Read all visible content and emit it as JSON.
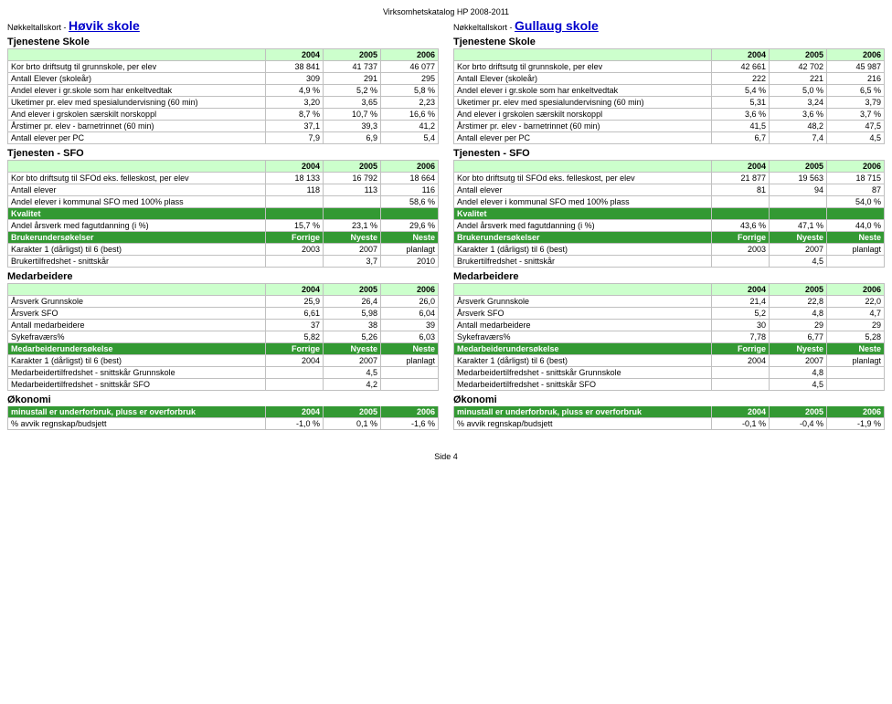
{
  "catalog_title": "Virksomhetskatalog HP 2008-2011",
  "footer": "Side 4",
  "columns": [
    {
      "key_prefix": "Nøkkeltallskort - ",
      "school": "Høvik skole",
      "sections": [
        {
          "title": "Tjenestene Skole",
          "headers": [
            "",
            "2004",
            "2005",
            "2006"
          ],
          "rows": [
            [
              "Kor brto driftsutg til grunnskole, per elev",
              "38 841",
              "41 737",
              "46 077"
            ],
            [
              "Antall Elever (skoleår)",
              "309",
              "291",
              "295"
            ],
            [
              "Andel elever i gr.skole som har enkeltvedtak",
              "4,9 %",
              "5,2 %",
              "5,8 %"
            ],
            [
              "Uketimer pr. elev med spesialundervisning (60 min)",
              "3,20",
              "3,65",
              "2,23"
            ],
            [
              "And elever i grskolen særskilt norskoppl",
              "8,7 %",
              "10,7 %",
              "16,6 %"
            ],
            [
              "Årstimer pr. elev - barnetrinnet (60 min)",
              "37,1",
              "39,3",
              "41,2"
            ],
            [
              "Antall elever per PC",
              "7,9",
              "6,9",
              "5,4"
            ]
          ]
        },
        {
          "title": "Tjenesten - SFO",
          "headers": [
            "",
            "2004",
            "2005",
            "2006"
          ],
          "rows": [
            [
              "Kor bto driftsutg til SFOd eks. felleskost, per elev",
              "18 133",
              "16 792",
              "18 664"
            ],
            [
              "Antall elever",
              "118",
              "113",
              "116"
            ],
            [
              "Andel elever i kommunal SFO med 100% plass",
              "",
              "",
              "58,6 %"
            ]
          ],
          "dark_row": [
            "Kvalitet",
            "",
            "",
            ""
          ],
          "rows2": [
            [
              "Andel årsverk med fagutdanning (i %)",
              "15,7 %",
              "23,1 %",
              "29,6 %"
            ]
          ],
          "dark_row2": [
            "Brukerundersøkelser",
            "Forrige",
            "Nyeste",
            "Neste"
          ],
          "rows3": [
            [
              "Karakter 1 (dårligst) til 6 (best)",
              "2003",
              "2007",
              "planlagt"
            ],
            [
              "Brukertilfredshet - snittskår",
              "",
              "3,7",
              "2010"
            ]
          ]
        },
        {
          "title": "Medarbeidere",
          "headers": [
            "",
            "2004",
            "2005",
            "2006"
          ],
          "rows": [
            [
              "Årsverk Grunnskole",
              "25,9",
              "26,4",
              "26,0"
            ],
            [
              "Årsverk SFO",
              "6,61",
              "5,98",
              "6,04"
            ],
            [
              "Antall medarbeidere",
              "37",
              "38",
              "39"
            ],
            [
              "Sykefraværs%",
              "5,82",
              "5,26",
              "6,03"
            ]
          ],
          "dark_row": [
            "Medarbeiderundersøkelse",
            "Forrige",
            "Nyeste",
            "Neste"
          ],
          "rows2": [
            [
              "Karakter 1 (dårligst) til 6 (best)",
              "2004",
              "2007",
              "planlagt"
            ],
            [
              "Medarbeidertilfredshet - snittskår Grunnskole",
              "",
              "4,5",
              ""
            ],
            [
              "Medarbeidertilfredshet - snittskår SFO",
              "",
              "4,2",
              ""
            ]
          ]
        },
        {
          "title": "Økonomi",
          "dark_header": [
            "minustall er underforbruk, pluss er overforbruk",
            "2004",
            "2005",
            "2006"
          ],
          "rows": [
            [
              "% avvik regnskap/budsjett",
              "-1,0 %",
              "0,1 %",
              "-1,6 %"
            ]
          ]
        }
      ]
    },
    {
      "key_prefix": "Nøkkeltallskort - ",
      "school": "Gullaug skole",
      "sections": [
        {
          "title": "Tjenestene Skole",
          "headers": [
            "",
            "2004",
            "2005",
            "2006"
          ],
          "rows": [
            [
              "Kor brto driftsutg til grunnskole, per elev",
              "42 661",
              "42 702",
              "45 987"
            ],
            [
              "Antall Elever (skoleår)",
              "222",
              "221",
              "216"
            ],
            [
              "Andel elever i gr.skole som har enkeltvedtak",
              "5,4 %",
              "5,0 %",
              "6,5 %"
            ],
            [
              "Uketimer pr. elev med spesialundervisning (60 min)",
              "5,31",
              "3,24",
              "3,79"
            ],
            [
              "And elever i grskolen særskilt norskoppl",
              "3,6 %",
              "3,6 %",
              "3,7 %"
            ],
            [
              "Årstimer pr. elev - barnetrinnet (60 min)",
              "41,5",
              "48,2",
              "47,5"
            ],
            [
              "Antall elever per PC",
              "6,7",
              "7,4",
              "4,5"
            ]
          ]
        },
        {
          "title": "Tjenesten - SFO",
          "headers": [
            "",
            "2004",
            "2005",
            "2006"
          ],
          "rows": [
            [
              "Kor bto driftsutg til SFOd eks. felleskost, per elev",
              "21 877",
              "19 563",
              "18 715"
            ],
            [
              "Antall elever",
              "81",
              "94",
              "87"
            ],
            [
              "Andel elever i kommunal SFO med 100% plass",
              "",
              "",
              "54,0 %"
            ]
          ],
          "dark_row": [
            "Kvalitet",
            "",
            "",
            ""
          ],
          "rows2": [
            [
              "Andel årsverk med fagutdanning (i %)",
              "43,6 %",
              "47,1 %",
              "44,0 %"
            ]
          ],
          "dark_row2": [
            "Brukerundersøkelser",
            "Forrige",
            "Nyeste",
            "Neste"
          ],
          "rows3": [
            [
              "Karakter 1 (dårligst) til 6 (best)",
              "2003",
              "2007",
              "planlagt"
            ],
            [
              "Brukertilfredshet - snittskår",
              "",
              "4,5",
              ""
            ]
          ]
        },
        {
          "title": "Medarbeidere",
          "headers": [
            "",
            "2004",
            "2005",
            "2006"
          ],
          "rows": [
            [
              "Årsverk Grunnskole",
              "21,4",
              "22,8",
              "22,0"
            ],
            [
              "Årsverk SFO",
              "5,2",
              "4,8",
              "4,7"
            ],
            [
              "Antall medarbeidere",
              "30",
              "29",
              "29"
            ],
            [
              "Sykefraværs%",
              "7,78",
              "6,77",
              "5,28"
            ]
          ],
          "dark_row": [
            "Medarbeiderundersøkelse",
            "Forrige",
            "Nyeste",
            "Neste"
          ],
          "rows2": [
            [
              "Karakter 1 (dårligst) til 6 (best)",
              "2004",
              "2007",
              "planlagt"
            ],
            [
              "Medarbeidertilfredshet - snittskår Grunnskole",
              "",
              "4,8",
              ""
            ],
            [
              "Medarbeidertilfredshet - snittskår SFO",
              "",
              "4,5",
              ""
            ]
          ]
        },
        {
          "title": "Økonomi",
          "dark_header": [
            "minustall er underforbruk, pluss er overforbruk",
            "2004",
            "2005",
            "2006"
          ],
          "rows": [
            [
              "% avvik regnskap/budsjett",
              "-0,1 %",
              "-0,4 %",
              "-1,9 %"
            ]
          ]
        }
      ]
    }
  ]
}
